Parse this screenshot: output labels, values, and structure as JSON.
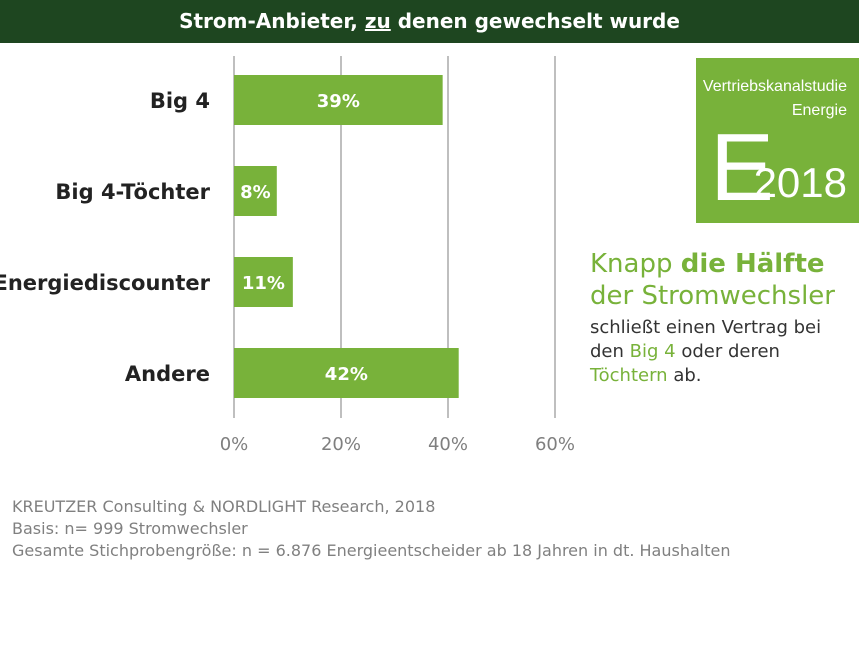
{
  "header": {
    "title_before": "Strom-Anbieter, ",
    "title_underlined": "zu",
    "title_after": " denen gewechselt wurde"
  },
  "chart_data": {
    "type": "bar",
    "orientation": "horizontal",
    "categories": [
      "Big 4",
      "Big 4-Töchter",
      "Energiediscounter",
      "Andere"
    ],
    "values": [
      39,
      8,
      11,
      42
    ],
    "value_labels": [
      "39%",
      "8%",
      "11%",
      "42%"
    ],
    "xlim": [
      0,
      60
    ],
    "xticks": [
      "0%",
      "20%",
      "40%",
      "60%"
    ],
    "xtick_values": [
      0,
      20,
      40,
      60
    ],
    "grid": "vertical",
    "bar_color": "#78b23a"
  },
  "badge": {
    "line1": "Vertriebskanalstudie",
    "line2": "Energie",
    "letter": "E",
    "year": "2018"
  },
  "callout": {
    "big_1a": "Knapp ",
    "big_1b": "die Hälfte",
    "big_2": "der Stromwechsler",
    "small_1": "schließt einen Vertrag bei",
    "small_2a": "den ",
    "small_2b": "Big 4",
    "small_2c": " oder deren",
    "small_3a": "Töchtern",
    "small_3b": " ab."
  },
  "source": {
    "line1": "KREUTZER Consulting & NORDLIGHT Research, 2018",
    "line2": "Basis: n= 999 Stromwechsler",
    "line3": "Gesamte Stichprobengröße: n = 6.876 Energieentscheider ab 18 Jahren in dt. Haushalten"
  },
  "colors": {
    "header_bg": "#1e4620",
    "accent": "#78b23a"
  }
}
